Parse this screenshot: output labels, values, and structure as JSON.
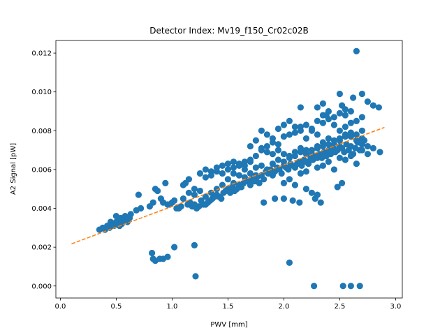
{
  "chart_data": {
    "type": "scatter",
    "title": "Detector Index: Mv19_f150_Cr02c02B",
    "xlabel": "PWV [mm]",
    "ylabel": "A2 Signal [pW]",
    "xlim": [
      -0.04,
      3.06
    ],
    "ylim": [
      -0.00062,
      0.01265
    ],
    "xticks": [
      0.0,
      0.5,
      1.0,
      1.5,
      2.0,
      2.5,
      3.0
    ],
    "xtick_labels": [
      "0.0",
      "0.5",
      "1.0",
      "1.5",
      "2.0",
      "2.5",
      "3.0"
    ],
    "yticks": [
      0.0,
      0.002,
      0.004,
      0.006,
      0.008,
      0.01,
      0.012
    ],
    "ytick_labels": [
      "0.000",
      "0.002",
      "0.004",
      "0.006",
      "0.008",
      "0.010",
      "0.012"
    ],
    "grid": false,
    "colors": {
      "points": "#1f77b4",
      "fit": "#ff7f0e"
    },
    "series": [
      {
        "name": "data",
        "kind": "scatter",
        "points": [
          [
            0.35,
            0.0029
          ],
          [
            0.38,
            0.003
          ],
          [
            0.4,
            0.0029
          ],
          [
            0.42,
            0.0031
          ],
          [
            0.44,
            0.003
          ],
          [
            0.46,
            0.0032
          ],
          [
            0.48,
            0.0031
          ],
          [
            0.5,
            0.0036
          ],
          [
            0.52,
            0.0033
          ],
          [
            0.54,
            0.0035
          ],
          [
            0.55,
            0.0032
          ],
          [
            0.57,
            0.0034
          ],
          [
            0.58,
            0.0036
          ],
          [
            0.6,
            0.0033
          ],
          [
            0.62,
            0.0035
          ],
          [
            0.63,
            0.0037
          ],
          [
            0.5,
            0.0033
          ],
          [
            0.53,
            0.0031
          ],
          [
            0.45,
            0.0033
          ],
          [
            0.68,
            0.0039
          ],
          [
            0.7,
            0.0047
          ],
          [
            0.72,
            0.004
          ],
          [
            0.8,
            0.0041
          ],
          [
            0.83,
            0.0043
          ],
          [
            0.85,
            0.005
          ],
          [
            0.87,
            0.0049
          ],
          [
            0.9,
            0.0045
          ],
          [
            0.92,
            0.0043
          ],
          [
            0.94,
            0.0053
          ],
          [
            0.96,
            0.0042
          ],
          [
            0.98,
            0.0042
          ],
          [
            1.0,
            0.0043
          ],
          [
            1.02,
            0.0044
          ],
          [
            1.04,
            0.004
          ],
          [
            1.06,
            0.004
          ],
          [
            1.08,
            0.0041
          ],
          [
            1.1,
            0.0045
          ],
          [
            1.12,
            0.0053
          ],
          [
            1.14,
            0.0042
          ],
          [
            1.16,
            0.0043
          ],
          [
            1.18,
            0.0041
          ],
          [
            1.2,
            0.0042
          ],
          [
            1.22,
            0.004
          ],
          [
            1.24,
            0.0041
          ],
          [
            1.26,
            0.0044
          ],
          [
            1.28,
            0.0042
          ],
          [
            1.3,
            0.0042
          ],
          [
            1.32,
            0.0043
          ],
          [
            1.34,
            0.0044
          ],
          [
            1.36,
            0.0045
          ],
          [
            1.38,
            0.0046
          ],
          [
            1.4,
            0.0047
          ],
          [
            1.42,
            0.0046
          ],
          [
            1.44,
            0.0045
          ],
          [
            1.46,
            0.0048
          ],
          [
            1.48,
            0.0049
          ],
          [
            1.5,
            0.005
          ],
          [
            1.52,
            0.0048
          ],
          [
            1.54,
            0.0051
          ],
          [
            1.56,
            0.0049
          ],
          [
            1.58,
            0.005
          ],
          [
            1.6,
            0.0052
          ],
          [
            1.62,
            0.0051
          ],
          [
            1.64,
            0.0053
          ],
          [
            1.66,
            0.0055
          ],
          [
            1.68,
            0.0054
          ],
          [
            1.7,
            0.0052
          ],
          [
            1.72,
            0.0055
          ],
          [
            1.74,
            0.0054
          ],
          [
            1.76,
            0.0056
          ],
          [
            1.78,
            0.0053
          ],
          [
            1.8,
            0.0057
          ],
          [
            1.82,
            0.0055
          ],
          [
            1.84,
            0.0059
          ],
          [
            1.86,
            0.0058
          ],
          [
            1.88,
            0.006
          ],
          [
            1.9,
            0.0057
          ],
          [
            1.92,
            0.0059
          ],
          [
            1.94,
            0.0061
          ],
          [
            1.96,
            0.006
          ],
          [
            1.98,
            0.0058
          ],
          [
            2.0,
            0.0062
          ],
          [
            2.02,
            0.0061
          ],
          [
            2.04,
            0.006
          ],
          [
            2.06,
            0.0063
          ],
          [
            2.08,
            0.0062
          ],
          [
            2.1,
            0.0061
          ],
          [
            2.12,
            0.0063
          ],
          [
            2.14,
            0.0064
          ],
          [
            2.16,
            0.0062
          ],
          [
            2.18,
            0.0065
          ],
          [
            2.2,
            0.0064
          ],
          [
            2.22,
            0.0063
          ],
          [
            2.24,
            0.0066
          ],
          [
            2.26,
            0.0065
          ],
          [
            2.28,
            0.0067
          ],
          [
            2.3,
            0.0066
          ],
          [
            2.32,
            0.0068
          ],
          [
            2.34,
            0.0066
          ],
          [
            2.36,
            0.0069
          ],
          [
            2.38,
            0.0067
          ],
          [
            2.4,
            0.007
          ],
          [
            2.42,
            0.0068
          ],
          [
            2.44,
            0.0071
          ],
          [
            2.46,
            0.0069
          ],
          [
            2.48,
            0.007
          ],
          [
            2.5,
            0.0072
          ],
          [
            2.52,
            0.0071
          ],
          [
            2.54,
            0.0069
          ],
          [
            2.56,
            0.0073
          ],
          [
            2.58,
            0.007
          ],
          [
            2.6,
            0.0072
          ],
          [
            2.62,
            0.0068
          ],
          [
            2.64,
            0.0071
          ],
          [
            2.66,
            0.0074
          ],
          [
            2.68,
            0.007
          ],
          [
            2.7,
            0.0073
          ],
          [
            2.72,
            0.0075
          ],
          [
            2.75,
            0.0072
          ],
          [
            2.8,
            0.0071
          ],
          [
            2.86,
            0.0069
          ],
          [
            1.1,
            0.0052
          ],
          [
            1.15,
            0.0055
          ],
          [
            1.2,
            0.005
          ],
          [
            1.25,
            0.0058
          ],
          [
            1.3,
            0.006
          ],
          [
            1.35,
            0.0059
          ],
          [
            1.4,
            0.0061
          ],
          [
            1.45,
            0.0062
          ],
          [
            1.5,
            0.0063
          ],
          [
            1.55,
            0.0064
          ],
          [
            1.6,
            0.0062
          ],
          [
            1.65,
            0.0064
          ],
          [
            1.7,
            0.0065
          ],
          [
            1.75,
            0.0067
          ],
          [
            1.8,
            0.007
          ],
          [
            1.85,
            0.0072
          ],
          [
            1.9,
            0.0074
          ],
          [
            1.95,
            0.0073
          ],
          [
            2.0,
            0.0077
          ],
          [
            2.05,
            0.0078
          ],
          [
            2.1,
            0.0082
          ],
          [
            2.15,
            0.008
          ],
          [
            2.2,
            0.0083
          ],
          [
            2.25,
            0.0081
          ],
          [
            2.3,
            0.0085
          ],
          [
            2.35,
            0.0088
          ],
          [
            2.4,
            0.009
          ],
          [
            2.45,
            0.0087
          ],
          [
            2.5,
            0.0089
          ],
          [
            2.55,
            0.0088
          ],
          [
            2.6,
            0.009
          ],
          [
            2.65,
            0.0085
          ],
          [
            2.7,
            0.0087
          ],
          [
            2.75,
            0.0095
          ],
          [
            2.8,
            0.0093
          ],
          [
            2.85,
            0.0092
          ],
          [
            1.8,
            0.008
          ],
          [
            1.85,
            0.0078
          ],
          [
            1.9,
            0.0076
          ],
          [
            1.95,
            0.0081
          ],
          [
            2.0,
            0.0083
          ],
          [
            2.05,
            0.0085
          ],
          [
            2.1,
            0.0079
          ],
          [
            2.15,
            0.0082
          ],
          [
            2.2,
            0.0076
          ],
          [
            2.25,
            0.008
          ],
          [
            2.3,
            0.0078
          ],
          [
            2.35,
            0.0084
          ],
          [
            2.4,
            0.0086
          ],
          [
            2.45,
            0.0083
          ],
          [
            2.5,
            0.008
          ],
          [
            2.55,
            0.0082
          ],
          [
            2.6,
            0.0084
          ],
          [
            2.65,
            0.0078
          ],
          [
            2.7,
            0.0076
          ],
          [
            1.7,
            0.0072
          ],
          [
            1.75,
            0.0075
          ],
          [
            1.8,
            0.0071
          ],
          [
            1.85,
            0.0069
          ],
          [
            1.9,
            0.0068
          ],
          [
            1.95,
            0.007
          ],
          [
            2.0,
            0.0068
          ],
          [
            2.05,
            0.0067
          ],
          [
            2.1,
            0.0069
          ],
          [
            2.15,
            0.0071
          ],
          [
            2.2,
            0.007
          ],
          [
            2.25,
            0.0068
          ],
          [
            2.3,
            0.0072
          ],
          [
            2.35,
            0.0074
          ],
          [
            2.4,
            0.0076
          ],
          [
            2.45,
            0.0073
          ],
          [
            2.5,
            0.0075
          ],
          [
            2.55,
            0.0078
          ],
          [
            2.6,
            0.0077
          ],
          [
            2.65,
            0.0075
          ],
          [
            2.7,
            0.008
          ],
          [
            1.5,
            0.0055
          ],
          [
            1.55,
            0.0058
          ],
          [
            1.6,
            0.0057
          ],
          [
            1.65,
            0.006
          ],
          [
            1.7,
            0.0058
          ],
          [
            1.75,
            0.0061
          ],
          [
            1.8,
            0.0062
          ],
          [
            1.85,
            0.006
          ],
          [
            1.9,
            0.0063
          ],
          [
            1.95,
            0.0065
          ],
          [
            2.0,
            0.0064
          ],
          [
            2.05,
            0.0066
          ],
          [
            2.1,
            0.0067
          ],
          [
            2.15,
            0.0069
          ],
          [
            2.2,
            0.0068
          ],
          [
            2.25,
            0.007
          ],
          [
            2.3,
            0.0071
          ],
          [
            2.35,
            0.0072
          ],
          [
            2.4,
            0.0073
          ],
          [
            2.45,
            0.0075
          ],
          [
            2.5,
            0.0076
          ],
          [
            2.55,
            0.0077
          ],
          [
            2.6,
            0.0079
          ],
          [
            1.3,
            0.0056
          ],
          [
            1.35,
            0.0057
          ],
          [
            1.4,
            0.0059
          ],
          [
            1.45,
            0.0058
          ],
          [
            1.5,
            0.006
          ],
          [
            1.55,
            0.0061
          ],
          [
            1.6,
            0.0063
          ],
          [
            1.65,
            0.0062
          ],
          [
            1.7,
            0.0064
          ],
          [
            1.15,
            0.0048
          ],
          [
            1.2,
            0.0047
          ],
          [
            1.25,
            0.0049
          ],
          [
            1.3,
            0.0046
          ],
          [
            1.35,
            0.0048
          ],
          [
            1.4,
            0.005
          ],
          [
            1.45,
            0.0052
          ],
          [
            1.55,
            0.0053
          ],
          [
            1.65,
            0.0056
          ],
          [
            1.75,
            0.0057
          ],
          [
            2.0,
            0.0053
          ],
          [
            2.05,
            0.0055
          ],
          [
            2.1,
            0.0052
          ],
          [
            2.2,
            0.005
          ],
          [
            2.25,
            0.0048
          ],
          [
            2.3,
            0.0047
          ],
          [
            2.15,
            0.0058
          ],
          [
            2.35,
            0.0062
          ],
          [
            2.45,
            0.006
          ],
          [
            2.55,
            0.0065
          ],
          [
            2.65,
            0.0063
          ],
          [
            2.2,
            0.0059
          ],
          [
            2.3,
            0.0061
          ],
          [
            2.4,
            0.0064
          ],
          [
            2.5,
            0.0066
          ],
          [
            2.6,
            0.0067
          ],
          [
            2.7,
            0.007
          ],
          [
            2.75,
            0.0068
          ],
          [
            2.15,
            0.0092
          ],
          [
            2.3,
            0.0092
          ],
          [
            2.35,
            0.0094
          ],
          [
            2.5,
            0.0099
          ],
          [
            2.52,
            0.0093
          ],
          [
            2.62,
            0.0097
          ],
          [
            2.7,
            0.0099
          ],
          [
            2.65,
            0.0121
          ],
          [
            2.38,
            0.0088
          ],
          [
            2.55,
            0.0091
          ],
          [
            1.82,
            0.0043
          ],
          [
            1.92,
            0.0045
          ],
          [
            2.0,
            0.0045
          ],
          [
            2.08,
            0.0044
          ],
          [
            2.14,
            0.0043
          ],
          [
            2.28,
            0.0045
          ],
          [
            2.33,
            0.0043
          ],
          [
            2.52,
            0.0053
          ],
          [
            2.48,
            0.0051
          ],
          [
            0.82,
            0.0017
          ],
          [
            0.83,
            0.0014
          ],
          [
            0.85,
            0.0013
          ],
          [
            0.89,
            0.0014
          ],
          [
            0.92,
            0.0014
          ],
          [
            0.96,
            0.0015
          ],
          [
            1.02,
            0.002
          ],
          [
            1.2,
            0.0021
          ],
          [
            1.21,
            0.0005
          ],
          [
            2.05,
            0.0012
          ],
          [
            2.27,
            0.0
          ],
          [
            2.53,
            0.0
          ],
          [
            2.6,
            0.0
          ],
          [
            2.68,
            0.0
          ]
        ]
      },
      {
        "name": "fit",
        "kind": "dashed-line",
        "x": [
          0.1,
          2.9
        ],
        "y": [
          0.00217,
          0.00817
        ]
      }
    ]
  }
}
